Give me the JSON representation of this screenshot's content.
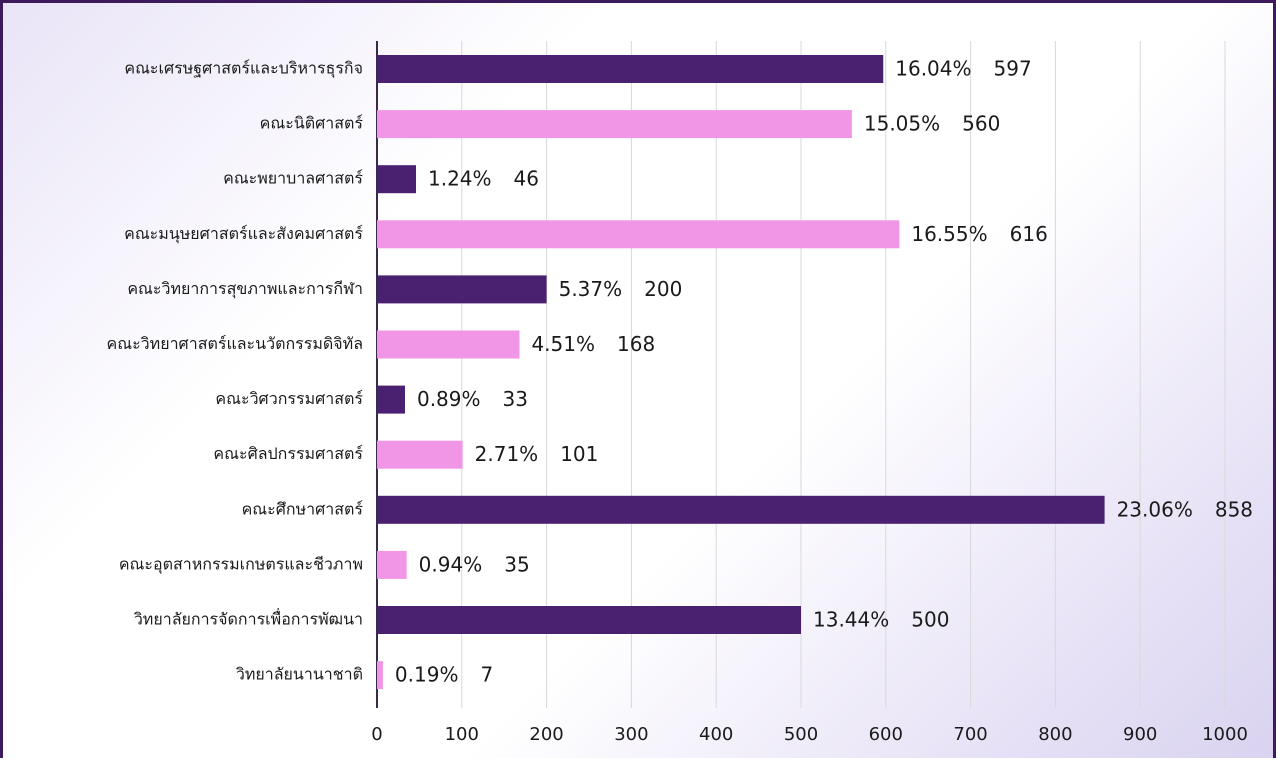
{
  "chart_data": {
    "type": "barh",
    "categories": [
      "คณะเศรษฐศาสตร์และบริหารธุรกิจ",
      "คณะนิติศาสตร์",
      "คณะพยาบาลศาสตร์",
      "คณะมนุษยศาสตร์และสังคมศาสตร์",
      "คณะวิทยาการสุขภาพและการกีฬา",
      "คณะวิทยาศาสตร์และนวัตกรรมดิจิทัล",
      "คณะวิศวกรรมศาสตร์",
      "คณะศิลปกรรมศาสตร์",
      "คณะศึกษาศาสตร์",
      "คณะอุตสาหกรรมเกษตรและชีวภาพ",
      "วิทยาลัยการจัดการเพื่อการพัฒนา",
      "วิทยาลัยนานาชาติ"
    ],
    "values": [
      597,
      560,
      46,
      616,
      200,
      168,
      33,
      101,
      858,
      35,
      500,
      7
    ],
    "percent_labels": [
      "16.04%",
      "15.05%",
      "1.24%",
      "16.55%",
      "5.37%",
      "4.51%",
      "0.89%",
      "2.71%",
      "23.06%",
      "0.94%",
      "13.44%",
      "0.19%"
    ],
    "colors": [
      "#4a2070",
      "#f196e6",
      "#4a2070",
      "#f196e6",
      "#4a2070",
      "#f196e6",
      "#4a2070",
      "#f196e6",
      "#4a2070",
      "#f196e6",
      "#4a2070",
      "#f196e6"
    ],
    "xlim": [
      0,
      1000
    ],
    "xticks": [
      0,
      100,
      200,
      300,
      400,
      500,
      600,
      700,
      800,
      900,
      1000
    ],
    "grid": true
  }
}
